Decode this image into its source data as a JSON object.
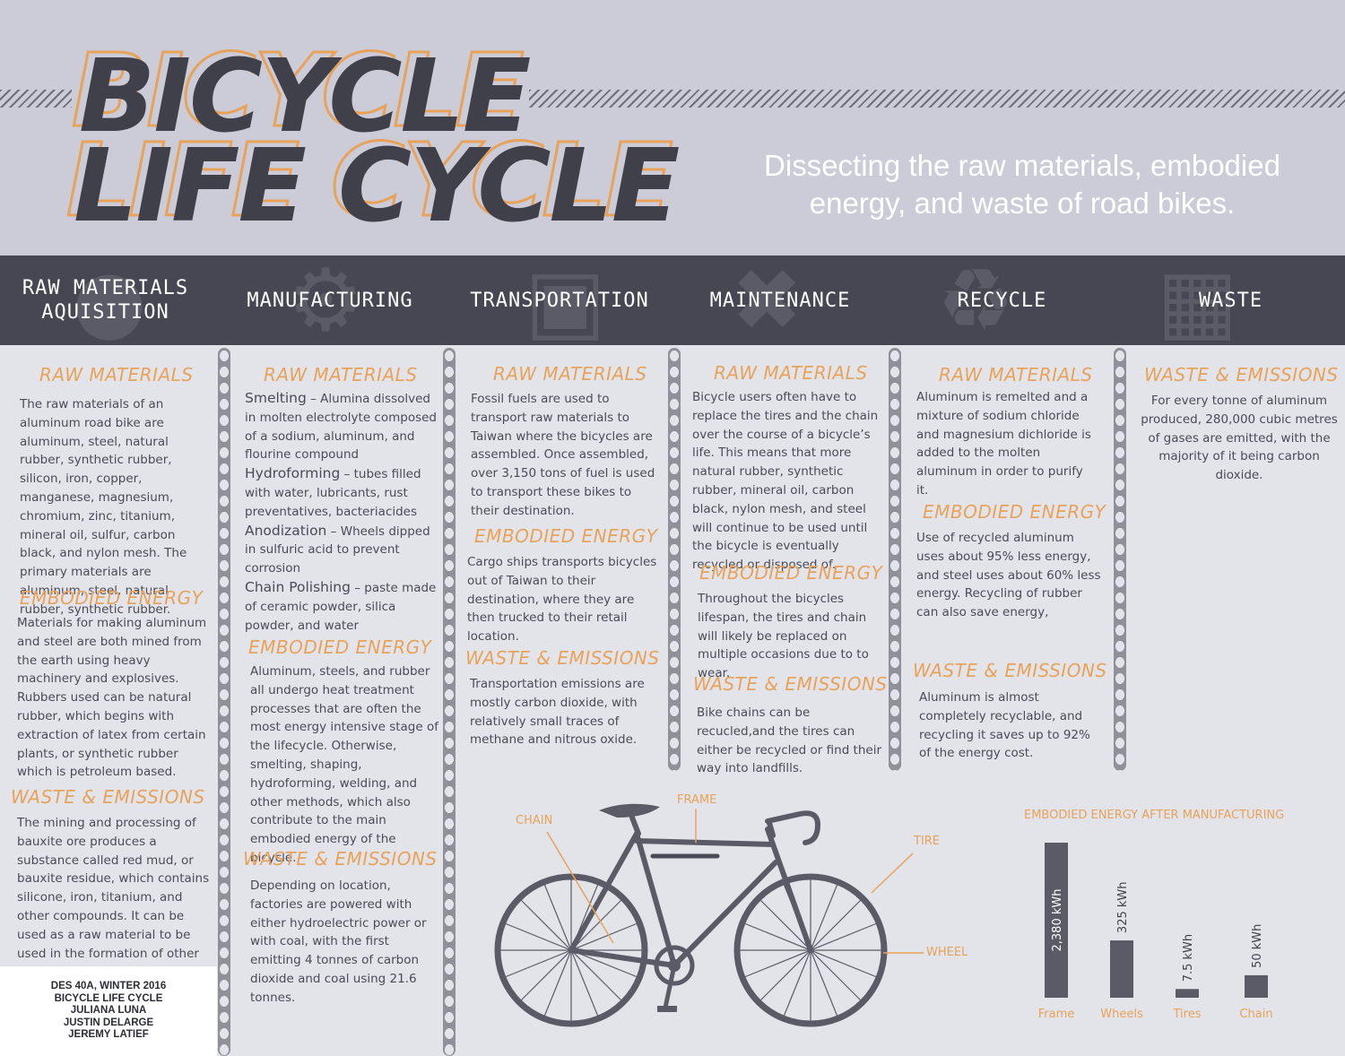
{
  "header": {
    "title_line1": "BICYCLE",
    "title_line2": "LIFE CYCLE",
    "subtitle": "Dissecting the raw materials, embodied energy, and waste of road bikes."
  },
  "stages": [
    {
      "label": "RAW MATERIALS AQUISITION",
      "icon": "earth-icon"
    },
    {
      "label": "MANUFACTURING",
      "icon": "gear-icon"
    },
    {
      "label": "TRANSPORTATION",
      "icon": "truck-icon"
    },
    {
      "label": "MAINTENANCE",
      "icon": "wrench-icon"
    },
    {
      "label": "RECYCLE",
      "icon": "recycle-icon"
    },
    {
      "label": "WASTE",
      "icon": "trash-icon"
    }
  ],
  "columns": {
    "raw": {
      "raw_h": "RAW MATERIALS",
      "raw_p": "The raw materials of an aluminum road bike are aluminum, steel, natural rubber, synthetic rubber, silicon, iron, copper, manganese, magnesium, chromium, zinc, titanium, mineral oil, sulfur, carbon black, and nylon mesh. The primary materials are aluminum, steel, natural rubber, synthetic rubber.",
      "energy_h": "EMBODIED ENERGY",
      "energy_p": "Materials for making aluminum and steel are both mined from the earth using heavy machinery and explosives. Rubbers used can be natural rubber, which begins with extraction of latex from certain plants, or synthetic rubber which is petroleum based.",
      "waste_h": "WASTE & EMISSIONS",
      "waste_p": "The mining and processing of bauxite ore produces a substance called red mud, or bauxite residue, which contains silicone, iron, titanium, and other compounds. It can be used as a raw material to be used in the formation of other metals."
    },
    "manufacturing": {
      "raw_h": "RAW MATERIALS",
      "items": [
        {
          "term": "Smelting",
          "text": " – Alumina dissolved in molten electrolyte composed of a sodium, aluminum, and flourine compound"
        },
        {
          "term": "Hydroforming",
          "text": " – tubes filled with water, lubricants, rust preventatives, bacteriacides"
        },
        {
          "term": "Anodization",
          "text": " – Wheels dipped in sulfuric acid to prevent corrosion"
        },
        {
          "term": "Chain Polishing",
          "text": " – paste made of ceramic powder, silica powder, and water"
        }
      ],
      "energy_h": "EMBODIED ENERGY",
      "energy_p": "Aluminum, steels, and rubber all undergo heat treatment processes that are often the most energy intensive stage of the lifecycle. Otherwise, smelting, shaping, hydroforming, welding, and other methods, which also contribute to the main embodied energy of the bicycle.",
      "waste_h": "WASTE & EMISSIONS",
      "waste_p": "Depending on location, factories are powered with either hydroelectric power or with coal, with the first emitting 4 tonnes of carbon dioxide and coal using 21.6 tonnes."
    },
    "transportation": {
      "raw_h": "RAW MATERIALS",
      "raw_p": "Fossil fuels are used to transport raw materials to Taiwan where the bicycles are assembled. Once assembled, over 3,150 tons of fuel is used to transport these bikes to their destination.",
      "energy_h": "EMBODIED ENERGY",
      "energy_p": "Cargo ships transports bicycles out of Taiwan to their destination, where they are then trucked to their retail location.",
      "waste_h": "WASTE & EMISSIONS",
      "waste_p": "Transportation emissions are mostly carbon dioxide, with relatively small traces of methane and nitrous oxide."
    },
    "maintenance": {
      "raw_h": "RAW MATERIALS",
      "raw_p": "Bicycle users often have to replace the tires and the chain over the course of a bicycle’s life. This means that more natural rubber, synthetic rubber, mineral oil, carbon black, nylon mesh, and steel will continue to be used until the bicycle is eventually recycled or disposed of.",
      "energy_h": "EMBODIED ENERGY",
      "energy_p": "Throughout the bicycles lifespan, the tires and chain will likely be replaced on multiple occasions due to to wear.",
      "waste_h": "WASTE & EMISSIONS",
      "waste_p": "Bike chains can be recucled,and the tires can either be recycled or find their way into landfills."
    },
    "recycle": {
      "raw_h": "RAW MATERIALS",
      "raw_p": "Aluminum is remelted and a mixture of sodium chloride and magnesium dichloride is added to the molten aluminum in order to purify it.",
      "energy_h": "EMBODIED ENERGY",
      "energy_p": "Use of recycled aluminum uses about 95% less energy, and steel uses about 60% less energy. Recycling of rubber can also save energy,",
      "waste_h": "WASTE & EMISSIONS",
      "waste_p": "Aluminum is almost completely recyclable, and recycling it saves up to 92% of the energy cost."
    },
    "waste": {
      "waste_h": "WASTE & EMISSIONS",
      "waste_p": "For every tonne of aluminum produced, 280,000 cubic metres of gases are emitted, with the majority of it being carbon dioxide."
    }
  },
  "credits": [
    "DES 40A, WINTER 2016",
    "BICYCLE LIFE CYCLE",
    "JULIANA LUNA",
    "JUSTIN DELARGE",
    "JEREMY LATIEF"
  ],
  "bike_labels": {
    "chain": "CHAIN",
    "frame": "FRAME",
    "tire": "TIRE",
    "wheel": "WHEEL"
  },
  "colors": {
    "accent": "#e8a25a",
    "dark": "#464752",
    "bar": "#5a5b66"
  },
  "chart_data": {
    "type": "bar",
    "title": "EMBODIED ENERGY AFTER MANUFACTURING",
    "categories": [
      "Frame",
      "Wheels",
      "Tires",
      "Chain"
    ],
    "values": [
      2380,
      325,
      7.5,
      50
    ],
    "value_labels": [
      "2,380 kWh",
      "325 kWh",
      "7.5 kWh",
      "50 kWh"
    ],
    "unit": "kWh"
  }
}
